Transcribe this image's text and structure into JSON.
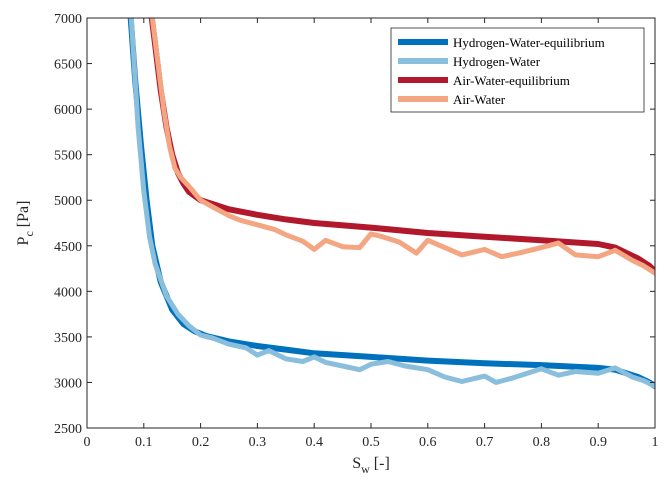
{
  "chart_data": {
    "type": "line",
    "xlabel": "S_w [-]",
    "ylabel": "P_c [Pa]",
    "xlim": [
      0,
      1
    ],
    "ylim": [
      2500,
      7000
    ],
    "xticks": [
      0,
      0.1,
      0.2,
      0.3,
      0.4,
      0.5,
      0.6,
      0.7,
      0.8,
      0.9,
      1
    ],
    "xtick_labels": [
      "0",
      "0.1",
      "0.2",
      "0.3",
      "0.4",
      "0.5",
      "0.6",
      "0.7",
      "0.8",
      "0.9",
      "1"
    ],
    "yticks": [
      2500,
      3000,
      3500,
      4000,
      4500,
      5000,
      5500,
      6000,
      6500,
      7000
    ],
    "ytick_labels": [
      "2500",
      "3000",
      "3500",
      "4000",
      "4500",
      "5000",
      "5500",
      "6000",
      "6500",
      "7000"
    ],
    "legend_position": "top-right",
    "grid": false,
    "series": [
      {
        "name": "Hydrogen-Water-equilibrium",
        "color": "#0072BD",
        "x": [
          0.077,
          0.085,
          0.095,
          0.105,
          0.115,
          0.13,
          0.15,
          0.17,
          0.19,
          0.21,
          0.25,
          0.3,
          0.35,
          0.4,
          0.5,
          0.6,
          0.7,
          0.8,
          0.9,
          0.93,
          0.95,
          0.97,
          0.99,
          1.0
        ],
        "y": [
          7000,
          6300,
          5600,
          5000,
          4500,
          4100,
          3800,
          3640,
          3560,
          3510,
          3450,
          3400,
          3360,
          3320,
          3280,
          3240,
          3210,
          3190,
          3160,
          3140,
          3100,
          3060,
          3000,
          2960
        ]
      },
      {
        "name": "Hydrogen-Water",
        "color": "#89BEDC",
        "x": [
          0.078,
          0.09,
          0.1,
          0.11,
          0.12,
          0.14,
          0.16,
          0.18,
          0.2,
          0.22,
          0.25,
          0.28,
          0.3,
          0.32,
          0.35,
          0.38,
          0.4,
          0.42,
          0.45,
          0.48,
          0.5,
          0.53,
          0.56,
          0.6,
          0.63,
          0.66,
          0.7,
          0.72,
          0.75,
          0.78,
          0.8,
          0.83,
          0.86,
          0.9,
          0.93,
          0.96,
          0.98,
          1.0
        ],
        "y": [
          7000,
          5800,
          5100,
          4600,
          4300,
          3950,
          3750,
          3620,
          3520,
          3490,
          3420,
          3380,
          3300,
          3350,
          3260,
          3230,
          3280,
          3220,
          3180,
          3140,
          3200,
          3230,
          3180,
          3140,
          3060,
          3010,
          3070,
          3000,
          3050,
          3110,
          3150,
          3080,
          3120,
          3100,
          3160,
          3060,
          3020,
          2960
        ]
      },
      {
        "name": "Air-Water-equilibrium",
        "color": "#B2182B",
        "x": [
          0.114,
          0.12,
          0.13,
          0.14,
          0.15,
          0.16,
          0.17,
          0.18,
          0.2,
          0.22,
          0.25,
          0.3,
          0.35,
          0.4,
          0.5,
          0.6,
          0.7,
          0.8,
          0.9,
          0.93,
          0.95,
          0.97,
          0.99,
          1.0
        ],
        "y": [
          7000,
          6700,
          6200,
          5800,
          5500,
          5300,
          5180,
          5090,
          5000,
          4960,
          4900,
          4840,
          4790,
          4750,
          4700,
          4640,
          4600,
          4560,
          4520,
          4480,
          4420,
          4360,
          4280,
          4220
        ]
      },
      {
        "name": "Air-Water",
        "color": "#F4A582",
        "x": [
          0.115,
          0.125,
          0.135,
          0.145,
          0.155,
          0.165,
          0.18,
          0.2,
          0.22,
          0.25,
          0.27,
          0.3,
          0.33,
          0.35,
          0.38,
          0.4,
          0.42,
          0.45,
          0.48,
          0.5,
          0.52,
          0.55,
          0.58,
          0.6,
          0.63,
          0.66,
          0.7,
          0.73,
          0.76,
          0.8,
          0.83,
          0.86,
          0.9,
          0.93,
          0.96,
          0.98,
          1.0
        ],
        "y": [
          7000,
          6500,
          6000,
          5600,
          5350,
          5250,
          5150,
          5000,
          4930,
          4830,
          4780,
          4730,
          4680,
          4620,
          4550,
          4460,
          4560,
          4490,
          4480,
          4630,
          4600,
          4540,
          4420,
          4560,
          4480,
          4400,
          4460,
          4380,
          4420,
          4480,
          4530,
          4400,
          4380,
          4450,
          4340,
          4280,
          4200
        ]
      }
    ]
  }
}
